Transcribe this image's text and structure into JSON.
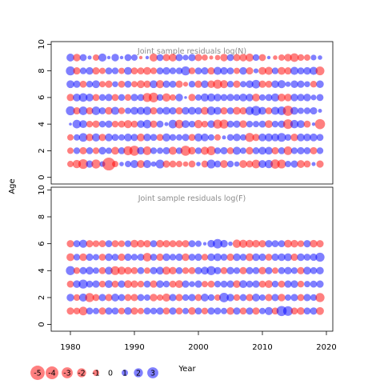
{
  "chart_data": [
    {
      "type": "scatter",
      "subtype": "bubble-residuals",
      "title": "Joint sample residuals log(N)",
      "xlabel": "Year",
      "ylabel": "Age",
      "xlim": [
        1977,
        2021
      ],
      "ylim": [
        -0.5,
        10.2
      ],
      "yticks": [
        0,
        2,
        4,
        6,
        8,
        10
      ],
      "ages": [
        1,
        2,
        3,
        4,
        5,
        6,
        7,
        8,
        9
      ],
      "years": [
        1980,
        1981,
        1982,
        1983,
        1984,
        1985,
        1986,
        1987,
        1988,
        1989,
        1990,
        1991,
        1992,
        1993,
        1994,
        1995,
        1996,
        1997,
        1998,
        1999,
        2000,
        2001,
        2002,
        2003,
        2004,
        2005,
        2006,
        2007,
        2008,
        2009,
        2010,
        2011,
        2012,
        2013,
        2014,
        2015,
        2016,
        2017,
        2018,
        2019
      ],
      "residuals": [
        [
          -1.0,
          -1.7,
          -2.3,
          1.3,
          -2.0,
          0.8,
          -4.0,
          -1.0,
          0.5,
          1.0,
          1.6,
          -1.5,
          1.6,
          0.7,
          1.9,
          -1.3,
          -1.2,
          -1.0,
          -0.7,
          -1.2,
          0.5,
          -1.2,
          1.9,
          1.2,
          -1.5,
          1.1,
          0.7,
          -1.5,
          -1.2,
          -1.8,
          1.5,
          1.7,
          -2.1,
          -1.9,
          1.0,
          1.3,
          -1.5,
          -1.2,
          0.4,
          -1.3
        ],
        [
          -1.0,
          1.1,
          -1.3,
          1.2,
          -1.1,
          1.4,
          1.0,
          -1.5,
          1.2,
          -2.0,
          -2.5,
          1.4,
          -1.8,
          1.1,
          1.0,
          1.3,
          -1.6,
          1.1,
          -2.5,
          -1.4,
          1.1,
          -1.6,
          -2.0,
          1.1,
          1.3,
          -1.2,
          1.6,
          1.0,
          -1.4,
          1.2,
          1.5,
          1.5,
          -1.3,
          1.2,
          -1.8,
          1.1,
          1.3,
          1.2,
          -1.3,
          1.1
        ],
        [
          -1.0,
          1.0,
          1.8,
          -1.4,
          1.6,
          -1.3,
          1.5,
          1.2,
          1.0,
          1.5,
          1.3,
          -1.5,
          1.4,
          1.2,
          -1.2,
          1.6,
          1.1,
          1.0,
          1.3,
          -1.2,
          1.6,
          1.5,
          1.0,
          -1.0,
          0.4,
          1.1,
          1.4,
          1.0,
          -2.0,
          -1.3,
          1.5,
          1.6,
          1.5,
          1.9,
          1.1,
          -1.4,
          1.5,
          1.4,
          1.5,
          1.2
        ],
        [
          0.2,
          1.8,
          1.5,
          -1.1,
          -1.3,
          1.1,
          1.3,
          -1.1,
          -1.2,
          -1.6,
          -1.2,
          1.4,
          1.8,
          -1.3,
          1.2,
          0.4,
          1.8,
          -1.8,
          1.5,
          1.1,
          -1.7,
          -1.1,
          1.4,
          -2.0,
          -2.0,
          1.2,
          1.3,
          -1.4,
          1.1,
          1.0,
          1.2,
          -1.5,
          1.1,
          1.3,
          -2.3,
          1.7,
          1.5,
          -1.2,
          0.3,
          -2.5
        ],
        [
          2.0,
          -1.3,
          1.8,
          -1.3,
          1.8,
          1.2,
          -1.4,
          1.6,
          -1.1,
          1.0,
          1.5,
          1.5,
          1.7,
          -1.3,
          1.2,
          1.5,
          1.3,
          -1.3,
          1.4,
          1.5,
          1.3,
          -1.5,
          1.8,
          1.5,
          -1.3,
          1.2,
          -1.5,
          -1.3,
          1.7,
          2.3,
          1.5,
          -1.2,
          1.6,
          1.8,
          -2.5,
          1.5,
          1.0,
          1.1,
          1.3,
          0.4
        ],
        [
          -1.3,
          1.5,
          1.8,
          1.5,
          -1.2,
          1.1,
          1.3,
          -1.2,
          1.1,
          -1.1,
          1.3,
          1.2,
          -2.0,
          -2.3,
          1.1,
          -1.7,
          -1.0,
          1.4,
          0.2,
          -1.3,
          1.0,
          1.6,
          1.6,
          1.4,
          1.2,
          1.3,
          1.1,
          1.5,
          1.4,
          -1.5,
          1.0,
          1.2,
          1.6,
          -1.5,
          -1.4,
          1.4,
          1.3,
          1.4,
          0.8,
          1.2
        ],
        [
          1.5,
          1.3,
          -1.2,
          1.1,
          1.5,
          -1.0,
          -1.3,
          0.9,
          -1.2,
          1.2,
          -1.0,
          -1.5,
          -1.3,
          1.5,
          -1.6,
          1.3,
          1.2,
          -1.3,
          -0.6,
          1.1,
          -1.3,
          1.4,
          -1.4,
          -2.0,
          -1.6,
          1.1,
          -1.3,
          1.0,
          1.4,
          1.8,
          -1.3,
          -1.2,
          1.4,
          1.6,
          0.7,
          1.4,
          1.3,
          0.9,
          -1.1,
          1.4
        ],
        [
          2.0,
          -1.3,
          1.1,
          1.4,
          -1.3,
          -1.0,
          1.2,
          1.1,
          -1.0,
          1.5,
          -1.2,
          -1.2,
          -1.5,
          -1.1,
          1.2,
          1.4,
          1.1,
          1.1,
          2.0,
          -1.1,
          1.2,
          1.3,
          -1.3,
          1.6,
          1.4,
          1.2,
          -1.0,
          1.4,
          -1.3,
          0.6,
          -1.5,
          -1.6,
          1.1,
          -1.5,
          -1.3,
          1.6,
          1.2,
          1.4,
          1.6,
          -1.9
        ],
        [
          1.5,
          -1.4,
          1.2,
          0.4,
          -1.0,
          1.6,
          0.3,
          1.4,
          0.3,
          1.2,
          1.0,
          -0.3,
          0.3,
          -1.6,
          1.2,
          -1.3,
          -1.5,
          1.3,
          0.8,
          1.3,
          -1.3,
          -0.9,
          -0.4,
          -0.7,
          -1.4,
          1.2,
          -1.3,
          -1.4,
          -1.6,
          1.1,
          -1.2,
          0.3,
          -0.5,
          -1.0,
          -1.4,
          -1.8,
          -1.1,
          -1.0,
          0.8,
          0.5
        ]
      ]
    },
    {
      "type": "scatter",
      "subtype": "bubble-residuals",
      "title": "Joint sample residuals log(F)",
      "xlabel": "Year",
      "ylabel": "Age",
      "xlim": [
        1977,
        2021
      ],
      "ylim": [
        -0.5,
        10.2
      ],
      "yticks": [
        0,
        2,
        4,
        6,
        8,
        10
      ],
      "xticks": [
        1980,
        1990,
        2000,
        2010,
        2020
      ],
      "ages": [
        1,
        2,
        3,
        4,
        5,
        6
      ],
      "years": [
        1980,
        1981,
        1982,
        1983,
        1984,
        1985,
        1986,
        1987,
        1988,
        1989,
        1990,
        1991,
        1992,
        1993,
        1994,
        1995,
        1996,
        1997,
        1998,
        1999,
        2000,
        2001,
        2002,
        2003,
        2004,
        2005,
        2006,
        2007,
        2008,
        2009,
        2010,
        2011,
        2012,
        2013,
        2014,
        2015,
        2016,
        2017,
        2018,
        2019
      ],
      "residuals": [
        [
          -1.3,
          -1.1,
          -1.8,
          1.2,
          1.0,
          -1.3,
          1.3,
          1.2,
          -1.1,
          1.4,
          -1.3,
          -1.0,
          1.2,
          1.1,
          1.3,
          -1.2,
          1.3,
          -1.2,
          1.0,
          -1.4,
          1.2,
          -1.1,
          1.3,
          1.2,
          1.0,
          -1.4,
          1.3,
          -1.2,
          1.3,
          -1.3,
          1.0,
          1.6,
          -1.2,
          2.5,
          2.3,
          -1.2,
          -1.4,
          1.2,
          1.3,
          -1.5
        ],
        [
          1.4,
          -1.1,
          1.6,
          -2.0,
          -1.2,
          1.3,
          -1.3,
          1.5,
          1.2,
          -1.2,
          -1.3,
          1.2,
          1.0,
          -1.4,
          -1.0,
          -1.6,
          1.3,
          -1.3,
          1.1,
          1.3,
          -1.2,
          1.5,
          1.1,
          -1.0,
          2.2,
          1.4,
          -1.1,
          1.2,
          -1.3,
          1.5,
          1.0,
          -1.3,
          1.3,
          -1.4,
          1.0,
          1.3,
          -1.2,
          1.3,
          1.1,
          -2.0
        ],
        [
          -1.2,
          1.4,
          2.0,
          1.2,
          1.3,
          -1.1,
          1.5,
          -1.2,
          1.3,
          -1.5,
          -1.3,
          -1.1,
          1.2,
          -1.3,
          1.4,
          1.1,
          -1.2,
          -1.5,
          1.3,
          0.9,
          1.3,
          -1.0,
          -1.2,
          1.1,
          1.2,
          1.3,
          -1.4,
          1.5,
          1.2,
          1.3,
          -1.2,
          -1.5,
          1.1,
          -1.2,
          1.3,
          1.4,
          -1.1,
          1.0,
          1.2,
          1.3
        ],
        [
          2.0,
          -1.1,
          1.3,
          1.5,
          1.0,
          -1.2,
          1.5,
          -1.9,
          -1.6,
          -1.4,
          -1.2,
          1.2,
          -1.0,
          1.3,
          1.5,
          -1.6,
          -1.4,
          1.2,
          -1.1,
          -1.2,
          1.3,
          1.5,
          2.0,
          1.3,
          -1.2,
          1.4,
          1.1,
          -1.3,
          1.3,
          1.2,
          -1.4,
          1.3,
          -1.0,
          1.2,
          1.4,
          1.1,
          -1.3,
          1.5,
          1.2,
          1.4
        ],
        [
          -1.5,
          1.1,
          -1.4,
          1.3,
          1.0,
          -1.2,
          1.4,
          1.2,
          -1.3,
          1.3,
          1.1,
          1.2,
          -1.8,
          1.2,
          -1.3,
          1.4,
          1.1,
          1.3,
          -1.4,
          1.2,
          1.3,
          -1.1,
          1.4,
          1.5,
          1.2,
          -1.3,
          1.4,
          1.2,
          -1.5,
          1.4,
          1.3,
          -1.2,
          1.3,
          1.4,
          1.5,
          -1.3,
          1.4,
          1.2,
          1.3,
          2.0
        ],
        [
          -1.3,
          1.2,
          1.6,
          -1.3,
          -1.1,
          -1.2,
          1.2,
          -1.2,
          -1.1,
          1.1,
          -1.5,
          -1.4,
          -1.3,
          1.2,
          -1.4,
          -1.3,
          -1.2,
          -1.2,
          -1.3,
          1.2,
          1.0,
          0.3,
          1.4,
          2.2,
          1.4,
          0.5,
          -1.7,
          -1.6,
          -1.5,
          -1.4,
          -1.3,
          1.3,
          1.2,
          1.2,
          -1.5,
          -1.4,
          -1.1,
          1.3,
          -1.4,
          -1.3
        ]
      ]
    }
  ],
  "legend": {
    "items": [
      {
        "label": "-5",
        "value": -5
      },
      {
        "label": "-4",
        "value": -4
      },
      {
        "label": "-3",
        "value": -3
      },
      {
        "label": "-2",
        "value": -2
      },
      {
        "label": "-1",
        "value": -1
      },
      {
        "label": "0",
        "value": 0
      },
      {
        "label": "1",
        "value": 1
      },
      {
        "label": "2",
        "value": 2
      },
      {
        "label": "3",
        "value": 3
      }
    ]
  },
  "colors": {
    "negative": "#ff0000",
    "positive": "#0000ff",
    "negative_fill": "rgba(255,0,0,0.5)",
    "positive_fill": "rgba(0,0,255,0.5)",
    "title_text": "#8c8c8c"
  }
}
